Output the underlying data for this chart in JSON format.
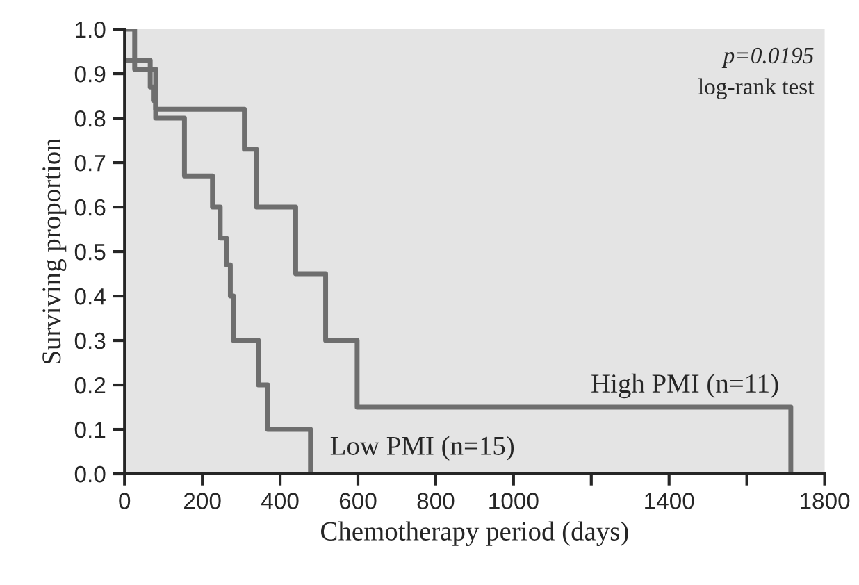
{
  "chart_data": {
    "type": "step",
    "xlabel": "Chemotherapy period (days)",
    "ylabel": "Surviving proportion",
    "series": [
      {
        "name": "High PMI (n=11)",
        "color": "#6e6e6e",
        "x": [
          0,
          26,
          80,
          308,
          339,
          440,
          517,
          598,
          1713
        ],
        "values": [
          1.0,
          0.91,
          0.82,
          0.73,
          0.6,
          0.45,
          0.3,
          0.15,
          0.0
        ]
      },
      {
        "name": "Low PMI (n=15)",
        "color": "#6e6e6e",
        "x": [
          0,
          66,
          74,
          80,
          154,
          226,
          246,
          262,
          272,
          280,
          344,
          368,
          478
        ],
        "values": [
          0.93,
          0.87,
          0.84,
          0.8,
          0.67,
          0.6,
          0.53,
          0.47,
          0.4,
          0.3,
          0.2,
          0.1,
          0.0
        ]
      }
    ],
    "xlim": [
      0,
      1800
    ],
    "ylim": [
      0,
      1.0
    ],
    "xticks": [
      0,
      200,
      400,
      600,
      800,
      1000,
      {
        "value": 1200,
        "label": null
      },
      1400,
      {
        "value": 1600,
        "label": null
      },
      1800
    ],
    "yticks": [
      {
        "value": 0,
        "label": "0.0"
      },
      0.1,
      0.2,
      0.3,
      0.4,
      0.5,
      0.6,
      0.7,
      0.8,
      0.9,
      {
        "value": 1.0,
        "label": "1.0"
      }
    ],
    "annotations": [
      "p=0.0195",
      "log-rank test"
    ],
    "grid": false,
    "legend": false,
    "line_style": "solid",
    "marker": "none"
  }
}
